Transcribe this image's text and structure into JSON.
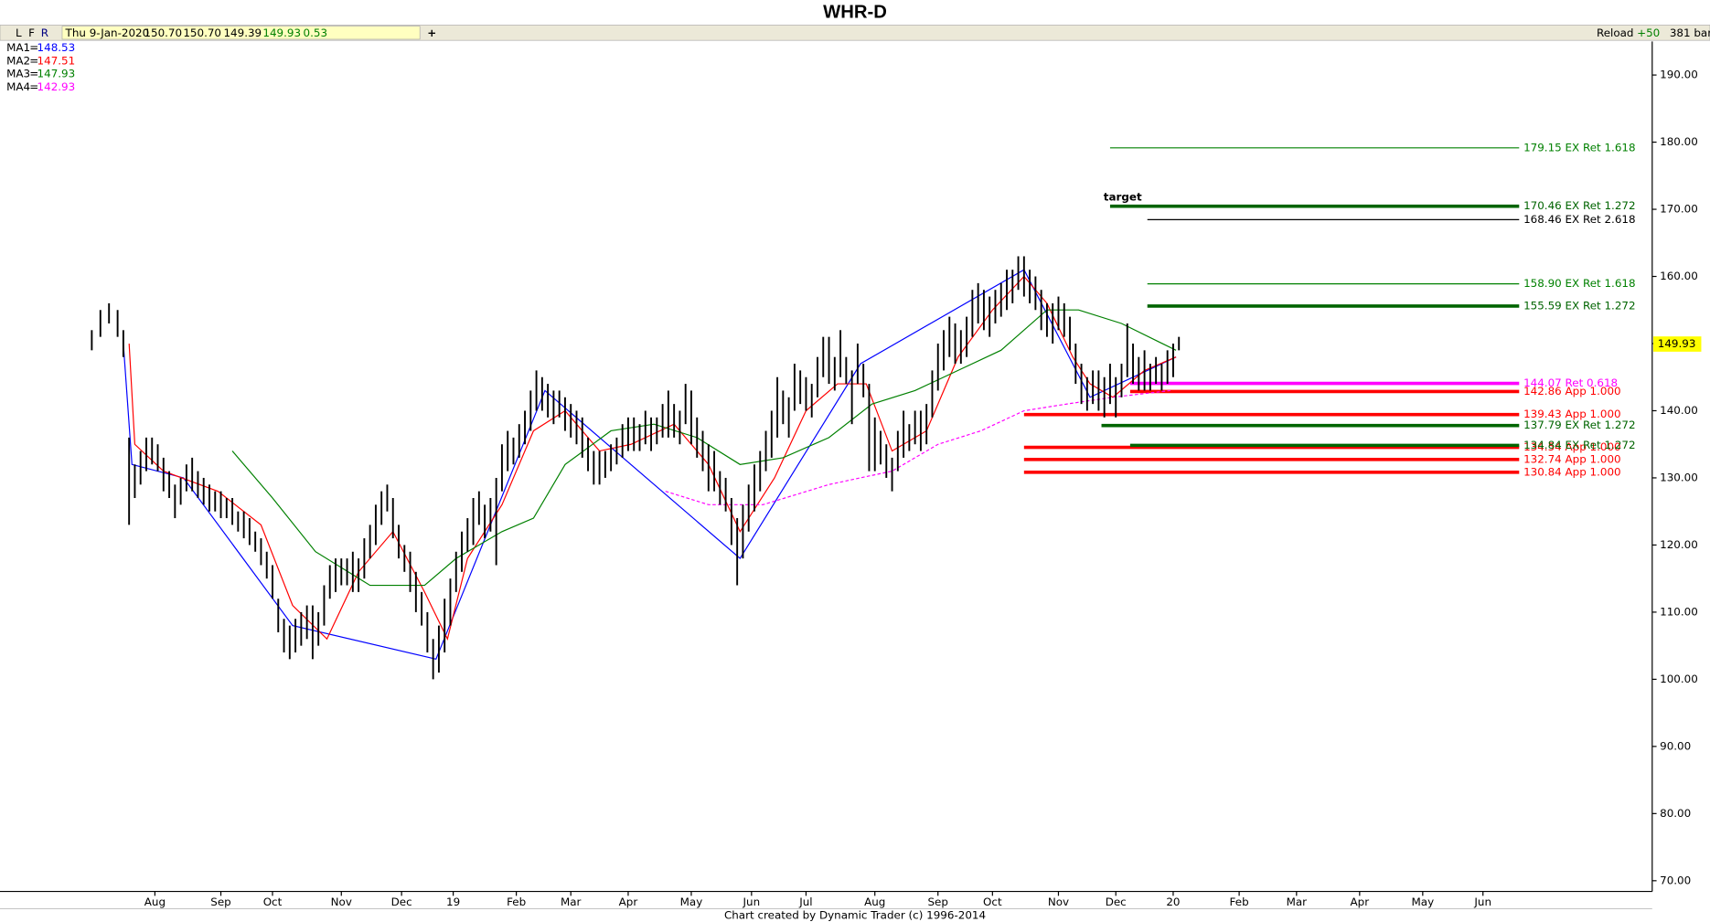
{
  "chart_data": {
    "type": "ohlc",
    "title": "WHR-D",
    "toolbar": {
      "buttons": [
        "L",
        "F",
        "R"
      ],
      "date": "Thu 9-Jan-2020",
      "fields": [
        "150.70",
        "150.70",
        "149.39",
        "149.93",
        "0.53"
      ],
      "add": "+",
      "reload": "Reload",
      "step": "+50",
      "bars": "381 bars"
    },
    "footer": "Chart created by Dynamic Trader  (c) 1996-2014",
    "separator": "=",
    "last_price": 149.93,
    "ylim": [
      68.4,
      195
    ],
    "yticks": [
      {
        "value": 70,
        "label": "70.00"
      },
      {
        "value": 80,
        "label": "80.00"
      },
      {
        "value": 90,
        "label": "90.00"
      },
      {
        "value": 100,
        "label": "100.00"
      },
      {
        "value": 110,
        "label": "110.00"
      },
      {
        "value": 120,
        "label": "120.00"
      },
      {
        "value": 130,
        "label": "130.00"
      },
      {
        "value": 140,
        "label": "140.00"
      },
      {
        "value": 150,
        "label": "150.00"
      },
      {
        "value": 160,
        "label": "160.00"
      },
      {
        "value": 170,
        "label": "170.00"
      },
      {
        "value": 180,
        "label": "180.00"
      },
      {
        "value": 190,
        "label": "190.00"
      }
    ],
    "xlim": [
      -32,
      544
    ],
    "xticks": [
      {
        "value": 22,
        "label": "Aug"
      },
      {
        "value": 45,
        "label": "Sep"
      },
      {
        "value": 63,
        "label": "Oct"
      },
      {
        "value": 87,
        "label": "Nov"
      },
      {
        "value": 108,
        "label": "Dec"
      },
      {
        "value": 126,
        "label": "19"
      },
      {
        "value": 148,
        "label": "Feb"
      },
      {
        "value": 167,
        "label": "Mar"
      },
      {
        "value": 187,
        "label": "Apr"
      },
      {
        "value": 209,
        "label": "May"
      },
      {
        "value": 230,
        "label": "Jun"
      },
      {
        "value": 249,
        "label": "Jul"
      },
      {
        "value": 273,
        "label": "Aug"
      },
      {
        "value": 295,
        "label": "Sep"
      },
      {
        "value": 314,
        "label": "Oct"
      },
      {
        "value": 337,
        "label": "Nov"
      },
      {
        "value": 357,
        "label": "Dec"
      },
      {
        "value": 377,
        "label": "20"
      },
      {
        "value": 400,
        "label": "Feb"
      },
      {
        "value": 420,
        "label": "Mar"
      },
      {
        "value": 442,
        "label": "Apr"
      },
      {
        "value": 464,
        "label": "May"
      },
      {
        "value": 485,
        "label": "Jun"
      }
    ],
    "bars": {
      "color": "#000000",
      "x": [
        0,
        3,
        6,
        9,
        11,
        13,
        15,
        17,
        19,
        21,
        23,
        25,
        27,
        29,
        31,
        33,
        35,
        37,
        39,
        41,
        43,
        45,
        47,
        49,
        51,
        53,
        55,
        57,
        59,
        61,
        63,
        65,
        67,
        69,
        71,
        73,
        75,
        77,
        79,
        81,
        83,
        85,
        87,
        89,
        91,
        93,
        95,
        97,
        99,
        101,
        103,
        105,
        107,
        109,
        111,
        113,
        115,
        117,
        119,
        121,
        123,
        125,
        127,
        129,
        131,
        133,
        135,
        137,
        139,
        141,
        143,
        145,
        147,
        149,
        151,
        153,
        155,
        157,
        159,
        161,
        163,
        165,
        167,
        169,
        171,
        173,
        175,
        177,
        179,
        181,
        183,
        185,
        187,
        189,
        191,
        193,
        195,
        197,
        199,
        201,
        203,
        205,
        207,
        209,
        211,
        213,
        215,
        217,
        219,
        221,
        223,
        225,
        227,
        229,
        231,
        233,
        235,
        237,
        239,
        241,
        243,
        245,
        247,
        249,
        251,
        253,
        255,
        257,
        259,
        261,
        263,
        265,
        267,
        269,
        271,
        273,
        275,
        277,
        279,
        281,
        283,
        285,
        287,
        289,
        291,
        293,
        295,
        297,
        299,
        301,
        303,
        305,
        307,
        309,
        311,
        313,
        315,
        317,
        319,
        321,
        323,
        325,
        327,
        329,
        331,
        333,
        335,
        337,
        339,
        341,
        343,
        345,
        347,
        349,
        351,
        353,
        355,
        357,
        359,
        361,
        363,
        365,
        367,
        369,
        371,
        373,
        375,
        377,
        379
      ],
      "high": [
        152,
        155,
        156,
        155,
        152,
        136,
        132,
        134,
        136,
        136,
        135,
        133,
        131,
        129,
        130,
        132,
        133,
        131,
        130,
        129,
        128,
        128,
        127,
        127,
        125,
        125,
        124,
        122,
        121,
        119,
        117,
        112,
        109,
        108,
        109,
        110,
        111,
        111,
        110,
        114,
        117,
        118,
        118,
        118,
        119,
        118,
        121,
        123,
        126,
        128,
        129,
        127,
        123,
        120,
        119,
        116,
        113,
        110,
        106,
        108,
        112,
        115,
        119,
        122,
        124,
        127,
        128,
        126,
        127,
        130,
        135,
        137,
        136,
        138,
        140,
        143,
        146,
        145,
        144,
        143,
        143,
        142,
        141,
        140,
        139,
        136,
        134,
        134,
        134,
        135,
        136,
        138,
        139,
        139,
        138,
        140,
        139,
        139,
        141,
        143,
        141,
        140,
        144,
        143,
        139,
        137,
        135,
        134,
        131,
        130,
        127,
        124,
        126,
        129,
        132,
        134,
        137,
        140,
        145,
        143,
        142,
        147,
        146,
        145,
        144,
        148,
        151,
        151,
        148,
        152,
        148,
        146,
        150,
        147,
        144,
        139,
        137,
        135,
        133,
        137,
        140,
        138,
        140,
        140,
        141,
        146,
        150,
        152,
        154,
        153,
        152,
        154,
        158,
        159,
        158,
        157,
        158,
        159,
        161,
        161,
        163,
        163,
        161,
        160,
        158,
        156,
        156,
        157,
        156,
        154,
        150,
        147,
        145,
        146,
        146,
        145,
        147,
        145,
        147,
        153,
        150,
        148,
        149,
        147,
        148,
        147,
        149,
        150,
        151
      ],
      "low": [
        149,
        151,
        153,
        151,
        148,
        123,
        127,
        129,
        131,
        132,
        131,
        128,
        127,
        124,
        126,
        128,
        128,
        127,
        126,
        125,
        125,
        124,
        124,
        123,
        122,
        121,
        120,
        119,
        117,
        115,
        112,
        107,
        104,
        103,
        104,
        105,
        106,
        103,
        105,
        108,
        112,
        113,
        114,
        114,
        113,
        113,
        115,
        118,
        120,
        123,
        125,
        121,
        118,
        116,
        113,
        110,
        108,
        104,
        100,
        101,
        104,
        108,
        113,
        116,
        119,
        120,
        123,
        121,
        122,
        117,
        128,
        131,
        132,
        133,
        135,
        137,
        140,
        140,
        139,
        138,
        139,
        137,
        136,
        135,
        133,
        131,
        129,
        129,
        130,
        131,
        132,
        133,
        134,
        134,
        134,
        135,
        134,
        135,
        136,
        136,
        136,
        135,
        138,
        135,
        133,
        131,
        128,
        128,
        126,
        125,
        120,
        114,
        118,
        122,
        125,
        128,
        131,
        133,
        136,
        138,
        136,
        140,
        141,
        140,
        139,
        142,
        145,
        144,
        143,
        145,
        144,
        138,
        144,
        142,
        131,
        131,
        132,
        130,
        128,
        131,
        133,
        134,
        135,
        134,
        135,
        139,
        143,
        146,
        148,
        147,
        147,
        148,
        151,
        153,
        152,
        151,
        153,
        154,
        155,
        156,
        158,
        157,
        156,
        155,
        152,
        151,
        150,
        152,
        151,
        149,
        144,
        141,
        140,
        141,
        140,
        139,
        141,
        139,
        142,
        145,
        144,
        143,
        143,
        143,
        144,
        143,
        144,
        145,
        149
      ]
    },
    "series": [
      {
        "name": "MA1",
        "last": 148.53,
        "color": "#0000ff",
        "dashed": false,
        "x": [
          11,
          14,
          32,
          70,
          120,
          158,
          226,
          268,
          325,
          348,
          378
        ],
        "values": [
          150,
          132,
          130,
          108,
          103,
          143,
          118,
          147,
          161,
          142,
          148
        ]
      },
      {
        "name": "MA2",
        "last": 147.51,
        "color": "#ff0000",
        "dashed": false,
        "x": [
          13,
          15,
          25,
          44,
          59,
          70,
          82,
          93,
          105,
          116,
          124,
          131,
          143,
          154,
          165,
          177,
          188,
          203,
          215,
          226,
          238,
          249,
          260,
          270,
          279,
          291,
          302,
          314,
          325,
          333,
          342,
          348,
          356,
          367,
          378
        ],
        "values": [
          150,
          135,
          131,
          128,
          123,
          111,
          106,
          116,
          122,
          113,
          106,
          118,
          126,
          137,
          140,
          134,
          135,
          138,
          132,
          122,
          130,
          140,
          144,
          144,
          134,
          137,
          148,
          155,
          160,
          156,
          148,
          144,
          142,
          146,
          148
        ]
      },
      {
        "name": "MA3",
        "last": 147.93,
        "color": "#008000",
        "dashed": false,
        "x": [
          49,
          63,
          78,
          97,
          116,
          127,
          143,
          154,
          165,
          181,
          196,
          211,
          226,
          241,
          257,
          272,
          287,
          302,
          317,
          333,
          344,
          359,
          378
        ],
        "values": [
          134,
          127,
          119,
          114,
          114,
          118,
          122,
          124,
          132,
          137,
          138,
          136,
          132,
          133,
          136,
          141,
          143,
          146,
          149,
          155,
          155,
          153,
          149
        ]
      },
      {
        "name": "MA4",
        "last": 142.93,
        "color": "#ff00ff",
        "dashed": true,
        "x": [
          200,
          215,
          234,
          257,
          279,
          295,
          310,
          325,
          340,
          356,
          376
        ],
        "values": [
          128,
          126,
          126,
          129,
          131,
          135,
          137,
          140,
          141,
          142,
          143
        ]
      }
    ],
    "levels": [
      {
        "value": 179.15,
        "label": "179.15 EX Ret 1.618",
        "color": "#008000",
        "weight": "thin",
        "x_start": 355
      },
      {
        "value": 170.46,
        "label": "170.46 EX Ret 1.272",
        "color": "#006400",
        "weight": "thick",
        "x_start": 355,
        "note": "target"
      },
      {
        "value": 168.46,
        "label": "168.46 EX Ret 2.618",
        "color": "#000000",
        "weight": "thin",
        "x_start": 368
      },
      {
        "value": 158.9,
        "label": "158.90 EX Ret 1.618",
        "color": "#008000",
        "weight": "thin",
        "x_start": 368
      },
      {
        "value": 155.59,
        "label": "155.59 EX Ret 1.272",
        "color": "#006400",
        "weight": "thick",
        "x_start": 368
      },
      {
        "value": 144.07,
        "label": "144.07 Ret 0.618",
        "color": "#ff00ff",
        "weight": "thick",
        "x_start": 362
      },
      {
        "value": 142.86,
        "label": "142.86 App 1.000",
        "color": "#ff0000",
        "weight": "thick",
        "x_start": 362
      },
      {
        "value": 139.43,
        "label": "139.43 App 1.000",
        "color": "#ff0000",
        "weight": "thick",
        "x_start": 325
      },
      {
        "value": 137.79,
        "label": "137.79 EX Ret 1.272",
        "color": "#006400",
        "weight": "thick",
        "x_start": 352
      },
      {
        "value": 134.54,
        "label": "134.54 App 1.000",
        "color": "#ff0000",
        "weight": "thick",
        "x_start": 325
      },
      {
        "value": 134.84,
        "label": "134.84 EX Ret 1.272",
        "color": "#006400",
        "weight": "thick",
        "x_start": 362
      },
      {
        "value": 132.74,
        "label": "132.74 App 1.000",
        "color": "#ff0000",
        "weight": "thick",
        "x_start": 325
      },
      {
        "value": 130.84,
        "label": "130.84 App 1.000",
        "color": "#ff0000",
        "weight": "thick",
        "x_start": 325
      }
    ]
  }
}
